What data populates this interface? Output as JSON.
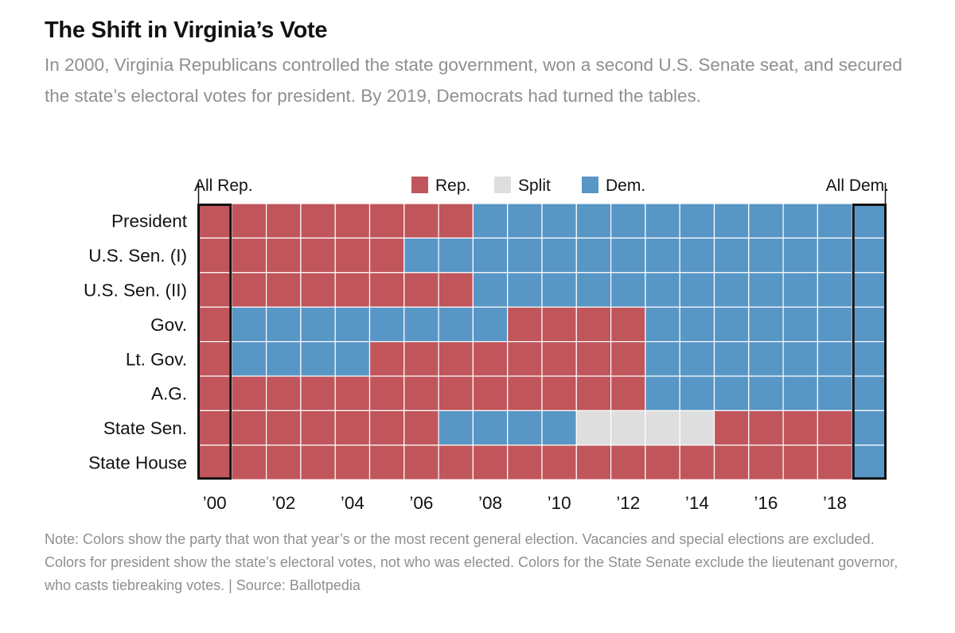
{
  "header": {
    "title": "The Shift in Virginia’s Vote",
    "subtitle": "In 2000, Virginia Republicans controlled the state government, won a second U.S. Senate seat, and secured the state’s electoral votes for president. By 2019, Democrats had turned the tables."
  },
  "footer": {
    "note": "Note: Colors show the party that won that year’s or the most recent general election. Vacancies and special elections are excluded. Colors for president show the state’s electoral votes, not who was elected. Colors for the State Senate exclude the lieutenant governor, who casts tiebreaking votes. | Source: Ballotpedia"
  },
  "chart_data": {
    "type": "heatmap",
    "x": [
      2000,
      2001,
      2002,
      2003,
      2004,
      2005,
      2006,
      2007,
      2008,
      2009,
      2010,
      2011,
      2012,
      2013,
      2014,
      2015,
      2016,
      2017,
      2018,
      2019
    ],
    "x_tick_labels": [
      {
        "year": 2000,
        "label": "’00"
      },
      {
        "year": 2002,
        "label": "’02"
      },
      {
        "year": 2004,
        "label": "’04"
      },
      {
        "year": 2006,
        "label": "’06"
      },
      {
        "year": 2008,
        "label": "’08"
      },
      {
        "year": 2010,
        "label": "’10"
      },
      {
        "year": 2012,
        "label": "’12"
      },
      {
        "year": 2014,
        "label": "’14"
      },
      {
        "year": 2016,
        "label": "’16"
      },
      {
        "year": 2018,
        "label": "’18"
      }
    ],
    "rows": [
      {
        "label": "President",
        "values": [
          "R",
          "R",
          "R",
          "R",
          "R",
          "R",
          "R",
          "R",
          "D",
          "D",
          "D",
          "D",
          "D",
          "D",
          "D",
          "D",
          "D",
          "D",
          "D",
          "D"
        ]
      },
      {
        "label": "U.S. Sen. (I)",
        "values": [
          "R",
          "R",
          "R",
          "R",
          "R",
          "R",
          "D",
          "D",
          "D",
          "D",
          "D",
          "D",
          "D",
          "D",
          "D",
          "D",
          "D",
          "D",
          "D",
          "D"
        ]
      },
      {
        "label": "U.S. Sen. (II)",
        "values": [
          "R",
          "R",
          "R",
          "R",
          "R",
          "R",
          "R",
          "R",
          "D",
          "D",
          "D",
          "D",
          "D",
          "D",
          "D",
          "D",
          "D",
          "D",
          "D",
          "D"
        ]
      },
      {
        "label": "Gov.",
        "values": [
          "R",
          "D",
          "D",
          "D",
          "D",
          "D",
          "D",
          "D",
          "D",
          "R",
          "R",
          "R",
          "R",
          "D",
          "D",
          "D",
          "D",
          "D",
          "D",
          "D"
        ]
      },
      {
        "label": "Lt. Gov.",
        "values": [
          "R",
          "D",
          "D",
          "D",
          "D",
          "R",
          "R",
          "R",
          "R",
          "R",
          "R",
          "R",
          "R",
          "D",
          "D",
          "D",
          "D",
          "D",
          "D",
          "D"
        ]
      },
      {
        "label": "A.G.",
        "values": [
          "R",
          "R",
          "R",
          "R",
          "R",
          "R",
          "R",
          "R",
          "R",
          "R",
          "R",
          "R",
          "R",
          "D",
          "D",
          "D",
          "D",
          "D",
          "D",
          "D"
        ]
      },
      {
        "label": "State Sen.",
        "values": [
          "R",
          "R",
          "R",
          "R",
          "R",
          "R",
          "R",
          "D",
          "D",
          "D",
          "D",
          "S",
          "S",
          "S",
          "S",
          "R",
          "R",
          "R",
          "R",
          "D"
        ]
      },
      {
        "label": "State House",
        "values": [
          "R",
          "R",
          "R",
          "R",
          "R",
          "R",
          "R",
          "R",
          "R",
          "R",
          "R",
          "R",
          "R",
          "R",
          "R",
          "R",
          "R",
          "R",
          "R",
          "D"
        ]
      }
    ],
    "legend": [
      {
        "key": "R",
        "label": "Rep.",
        "color": "#c0565b"
      },
      {
        "key": "S",
        "label": "Split",
        "color": "#dedede"
      },
      {
        "key": "D",
        "label": "Dem.",
        "color": "#5896c6"
      }
    ],
    "highlights": [
      {
        "year": 2000,
        "label": "All Rep."
      },
      {
        "year": 2019,
        "label": "All Dem."
      }
    ],
    "legend_position": "top-center",
    "grid": true
  }
}
